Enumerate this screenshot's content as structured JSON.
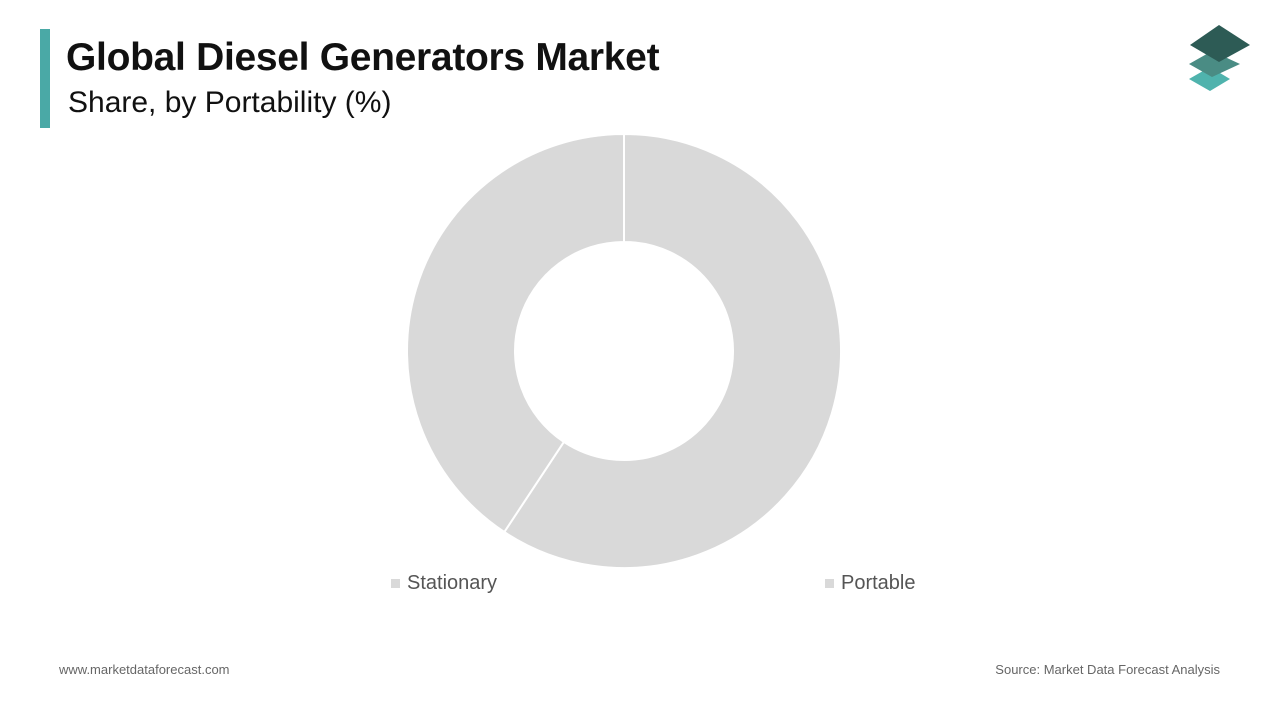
{
  "header": {
    "title": "Global Diesel Generators Market",
    "subtitle": "Share, by Portability (%)"
  },
  "colors": {
    "accent": "#4aa9a6",
    "slice": "#d9d9d9",
    "slice_separator": "#ffffff",
    "logo_top": "#2d5b55",
    "logo_middle": "#4a8c84",
    "logo_bottom": "#4fb3ad"
  },
  "logo": {
    "icon": "stacked-layers-icon"
  },
  "chart_data": {
    "type": "pie",
    "donut": true,
    "title": "Global Diesel Generators Market",
    "subtitle": "Share, by Portability (%)",
    "start_angle_deg": 0,
    "direction": "clockwise",
    "legend_position": "bottom",
    "slices": [
      {
        "label": "Portable",
        "value": 59.3
      },
      {
        "label": "Stationary",
        "value": 40.7
      }
    ],
    "legend": [
      {
        "label": "Stationary"
      },
      {
        "label": "Portable"
      }
    ]
  },
  "footer": {
    "website": "www.marketdataforecast.com",
    "source": "Source: Market Data Forecast Analysis"
  }
}
